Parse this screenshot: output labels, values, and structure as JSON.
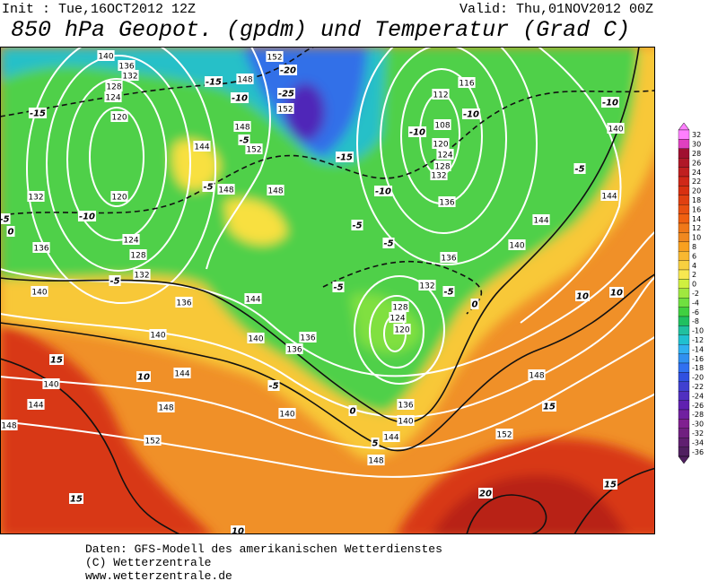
{
  "header": {
    "init": "Init : Tue,16OCT2012 12Z",
    "valid": "Valid: Thu,01NOV2012 00Z",
    "title": "850 hPa Geopot. (gpdm) und Temperatur (Grad C)"
  },
  "map": {
    "geopotential_labels": [
      140,
      136,
      132,
      128,
      124,
      120,
      152,
      148,
      152,
      148,
      144,
      152,
      148,
      148,
      132,
      120,
      124,
      128,
      132,
      136,
      140,
      136,
      144,
      140,
      140,
      136,
      136,
      144,
      140,
      144,
      148,
      148,
      152,
      140,
      136,
      140,
      144,
      148,
      152,
      148,
      140,
      144,
      144,
      140,
      136,
      132,
      128,
      124,
      120,
      112,
      116,
      108,
      136,
      132,
      128,
      124,
      120
    ],
    "temperature_labels": [
      -15,
      -15,
      -10,
      -20,
      -25,
      -5,
      -5,
      -10,
      -5,
      0,
      -5,
      -15,
      -10,
      -5,
      -5,
      -5,
      -5,
      -10,
      -10,
      -10,
      -5,
      10,
      10,
      15,
      10,
      -5,
      15,
      0,
      5,
      15,
      20,
      15,
      10,
      0
    ]
  },
  "colorbar": {
    "levels": [
      32,
      30,
      28,
      26,
      24,
      22,
      20,
      18,
      16,
      14,
      12,
      10,
      8,
      6,
      4,
      2,
      0,
      -2,
      -4,
      -6,
      -8,
      -10,
      -12,
      -14,
      -16,
      -18,
      -20,
      -22,
      -24,
      -26,
      -28,
      -30,
      -32,
      -34,
      -36
    ],
    "colors": [
      "#ff80ff",
      "#e040c0",
      "#a01030",
      "#b01828",
      "#c02020",
      "#d02818",
      "#d83010",
      "#e04010",
      "#e85010",
      "#f06010",
      "#f07818",
      "#f08820",
      "#f8a020",
      "#f8b830",
      "#f8d040",
      "#f8e850",
      "#d0f040",
      "#a0e840",
      "#70e040",
      "#40d040",
      "#20c060",
      "#20c0a0",
      "#20c0d0",
      "#30b0f0",
      "#3090f0",
      "#3070f0",
      "#3050e0",
      "#4040d0",
      "#5030c0",
      "#6020b0",
      "#7020a0",
      "#802090",
      "#702080",
      "#602070",
      "#502060"
    ]
  },
  "footer": {
    "lines": [
      "Daten: GFS-Modell des amerikanischen Wetterdienstes",
      "(C) Wetterzentrale",
      "www.wetterzentrale.de"
    ]
  }
}
